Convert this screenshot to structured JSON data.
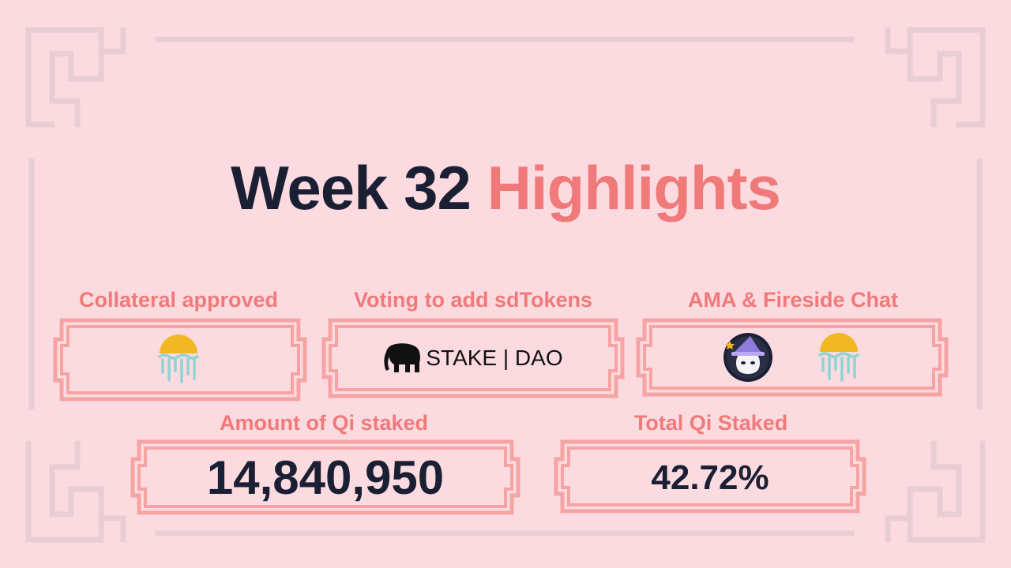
{
  "title": {
    "part1": "Week 32",
    "part2": "Highlights"
  },
  "cards": {
    "collateral": {
      "label": "Collateral approved",
      "icon": "sun-waves-icon"
    },
    "voting": {
      "label": "Voting to add sdTokens",
      "logo_text": "STAKE | DAO",
      "icon": "elephant-icon"
    },
    "ama": {
      "label": "AMA & Fireside Chat",
      "icons": [
        "witch-cat-avatar-icon",
        "sun-waves-icon"
      ]
    }
  },
  "stats": {
    "amount": {
      "label": "Amount of Qi staked",
      "value": "14,840,950"
    },
    "total": {
      "label": "Total Qi Staked",
      "value": "42.72%"
    }
  },
  "colors": {
    "background": "#fcdbe0",
    "accent": "#f07a7a",
    "frame": "#f6a3a3",
    "dark": "#1b1f33",
    "sun": "#f2b824",
    "waves": "#8fd3d3"
  }
}
